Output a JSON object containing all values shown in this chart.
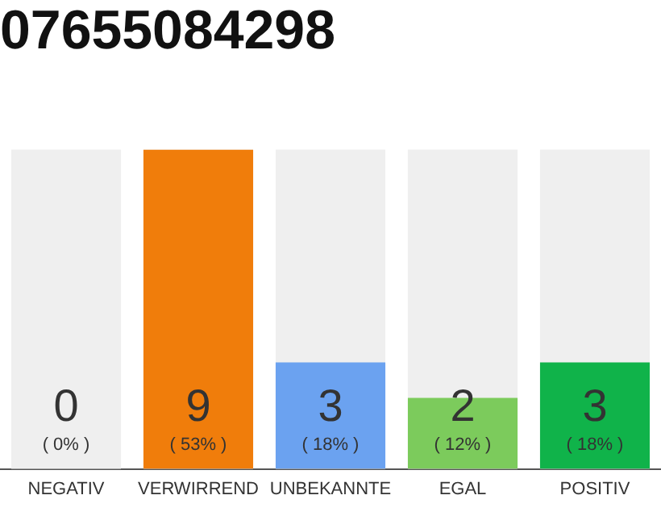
{
  "chart_data": {
    "type": "bar",
    "title": "07655084298",
    "categories": [
      "NEGATIV",
      "VERWIRREND",
      "UNBEKANNTE",
      "EGAL",
      "POSITIV"
    ],
    "values": [
      0,
      9,
      3,
      2,
      3
    ],
    "colors": [
      "#9e9e9e",
      "#f07d0b",
      "#6ba2f0",
      "#7ccb5c",
      "#10b34a"
    ],
    "ylim": [
      0,
      9
    ],
    "bands": [
      {
        "axis": "y",
        "from": 0,
        "to": 9,
        "color": "#efefef"
      }
    ],
    "tick_labels": "x",
    "data_labels": true,
    "grid": false,
    "legend": false,
    "annotations": [
      "( 0% )",
      "( 53% )",
      "( 18% )",
      "( 12% )",
      "( 18% )"
    ]
  }
}
